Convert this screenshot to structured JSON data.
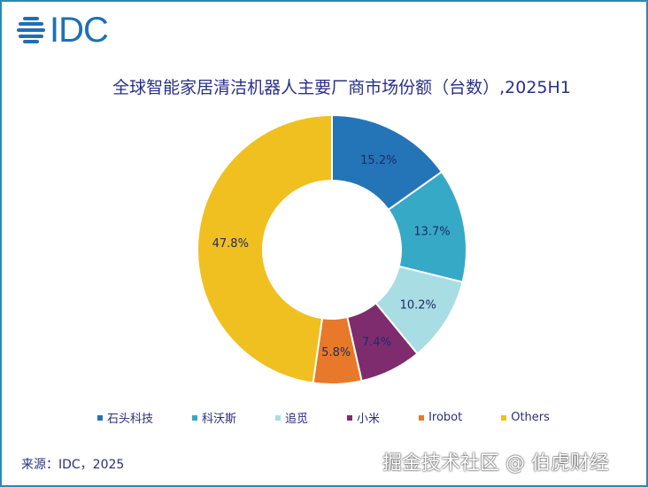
{
  "logo": {
    "text": "IDC"
  },
  "chart_data": {
    "type": "pie",
    "variant": "donut",
    "title": "全球智能家居清洁机器人主要厂商市场份额（台数）,2025H1",
    "categories": [
      "石头科技",
      "科沃斯",
      "追觅",
      "小米",
      "Irobot",
      "Others"
    ],
    "values": [
      15.2,
      13.7,
      10.2,
      7.4,
      5.8,
      47.8
    ],
    "labels": [
      "15.2%",
      "13.7%",
      "10.2%",
      "7.4%",
      "5.8%",
      "47.8%"
    ],
    "colors": [
      "#2474b8",
      "#36a9c6",
      "#a8dde3",
      "#7f2c6e",
      "#e8792a",
      "#f0c020"
    ],
    "legend": "bottom"
  },
  "source": "来源：IDC，2025",
  "watermark": "掘金技术社区 @ 伯虎财经"
}
